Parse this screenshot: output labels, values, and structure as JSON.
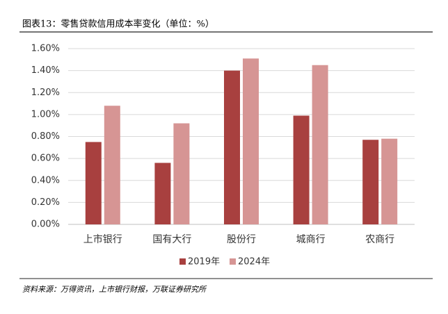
{
  "chart_data": {
    "type": "bar",
    "title": "图表13：零售贷款信用成本率变化（单位：%）",
    "source": "资料来源：万得资讯，上市银行财报，万联证券研究所",
    "categories": [
      "上市银行",
      "国有大行",
      "股份行",
      "城商行",
      "农商行"
    ],
    "series": [
      {
        "name": "2019年",
        "color": "#a8403f",
        "values": [
          0.75,
          0.56,
          1.4,
          0.99,
          0.77
        ]
      },
      {
        "name": "2024年",
        "color": "#d69594",
        "values": [
          1.08,
          0.92,
          1.51,
          1.45,
          0.78
        ]
      }
    ],
    "ylim": [
      0,
      1.6
    ],
    "yticks": [
      {
        "value": 0,
        "label": "0.00%"
      },
      {
        "value": 0.2,
        "label": "0.20%"
      },
      {
        "value": 0.4,
        "label": "0.40%"
      },
      {
        "value": 0.6,
        "label": "0.60%"
      },
      {
        "value": 0.8,
        "label": "0.80%"
      },
      {
        "value": 1.0,
        "label": "1.00%"
      },
      {
        "value": 1.2,
        "label": "1.20%"
      },
      {
        "value": 1.4,
        "label": "1.40%"
      },
      {
        "value": 1.6,
        "label": "1.60%"
      }
    ],
    "grid": true,
    "legend": "bottom"
  }
}
